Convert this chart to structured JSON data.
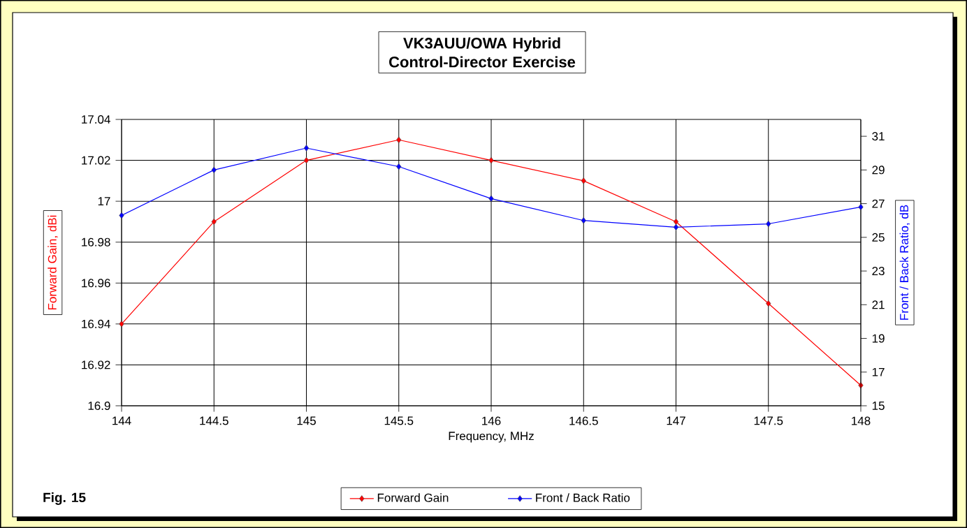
{
  "chart_data": {
    "type": "line",
    "title": "VK3AUU/OWA Hybrid Control-Director Exercise",
    "xlabel": "Frequency, MHz",
    "ylabel": "Forward Gain, dBi",
    "y2label": "Front / Back Ratio, dB",
    "x": [
      144,
      144.5,
      145,
      145.5,
      146,
      146.5,
      147,
      147.5,
      148
    ],
    "series": [
      {
        "name": "Forward Gain",
        "color": "#ff0000",
        "values": [
          16.94,
          16.99,
          17.02,
          17.03,
          17.02,
          17.01,
          16.99,
          16.95,
          16.91
        ]
      },
      {
        "name": "Front / Back Ratio",
        "color": "#0000ff",
        "axis": "y2",
        "values": [
          26.3,
          29.0,
          30.3,
          29.2,
          27.3,
          26.0,
          25.6,
          25.8,
          26.8
        ]
      }
    ],
    "xlim": [
      144,
      148
    ],
    "xticks": [
      144,
      144.5,
      145,
      145.5,
      146,
      146.5,
      147,
      147.5,
      148
    ],
    "ylim": [
      16.9,
      17.04
    ],
    "yticks": [
      16.9,
      16.92,
      16.94,
      16.96,
      16.98,
      17,
      17.02,
      17.04
    ],
    "y2lim": [
      15,
      32
    ],
    "y2ticks": [
      15,
      17,
      19,
      21,
      23,
      25,
      27,
      29,
      31
    ],
    "grid": true,
    "legend": "bottom",
    "marker": "diamond",
    "line_style": "solid",
    "annotations": [
      "Fig. 15"
    ]
  }
}
